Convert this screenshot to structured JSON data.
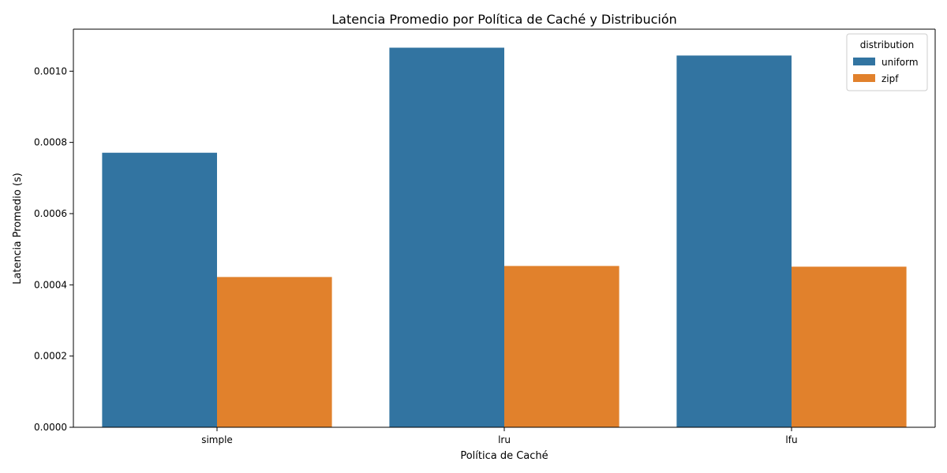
{
  "chart_data": {
    "type": "bar",
    "title": "Latencia Promedio por Política de Caché y Distribución",
    "xlabel": "Política de Caché",
    "ylabel": "Latencia Promedio (s)",
    "categories": [
      "simple",
      "lru",
      "lfu"
    ],
    "series": [
      {
        "name": "uniform",
        "color": "#3274a1",
        "values": [
          0.000771,
          0.001066,
          0.001044
        ]
      },
      {
        "name": "zipf",
        "color": "#e1812c",
        "values": [
          0.000422,
          0.000453,
          0.000451
        ]
      }
    ],
    "ylim": [
      0,
      0.001118
    ],
    "yticks": [
      0.0,
      0.0002,
      0.0004,
      0.0006,
      0.0008,
      0.001
    ],
    "ytick_labels": [
      "0.0000",
      "0.0002",
      "0.0004",
      "0.0006",
      "0.0008",
      "0.0010"
    ],
    "legend_title": "distribution",
    "legend_position": "top-right",
    "grid": false
  }
}
